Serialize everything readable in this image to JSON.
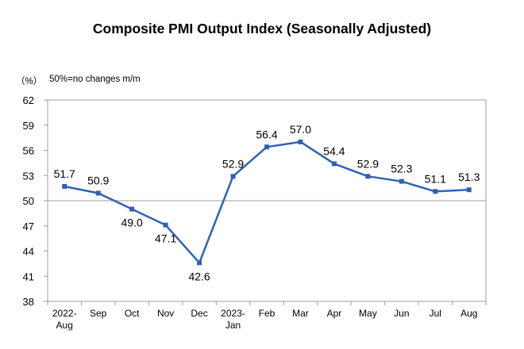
{
  "chart_data": {
    "type": "line",
    "title": "Composite PMI Output Index (Seasonally Adjusted)",
    "unit_label": "（%）",
    "note": "50%=no changes m/m",
    "categories": [
      [
        "2022-",
        "Aug"
      ],
      [
        "Sep"
      ],
      [
        "Oct"
      ],
      [
        "Nov"
      ],
      [
        "Dec"
      ],
      [
        "2023-",
        "Jan"
      ],
      [
        "Feb"
      ],
      [
        "Mar"
      ],
      [
        "Apr"
      ],
      [
        "May"
      ],
      [
        "Jun"
      ],
      [
        "Jul"
      ],
      [
        "Aug"
      ]
    ],
    "series": [
      {
        "values": [
          51.7,
          50.9,
          49.0,
          47.1,
          42.6,
          52.9,
          56.4,
          57.0,
          54.4,
          52.9,
          52.3,
          51.1,
          51.3
        ],
        "labels": [
          "51.7",
          "50.9",
          "49.0",
          "47.1",
          "42.6",
          "52.9",
          "56.4",
          "57.0",
          "54.4",
          "52.9",
          "52.3",
          "51.1",
          "51.3"
        ],
        "color": "#2e62b3"
      }
    ],
    "ylim": [
      38,
      62
    ],
    "yticks": [
      38,
      41,
      44,
      47,
      50,
      53,
      56,
      59,
      62
    ],
    "reference_line": 50,
    "grid": false,
    "legend": "none",
    "label_placement": [
      "above",
      "above",
      "below",
      "below",
      "below",
      "above",
      "above",
      "above",
      "above",
      "above",
      "above",
      "above",
      "above"
    ]
  }
}
